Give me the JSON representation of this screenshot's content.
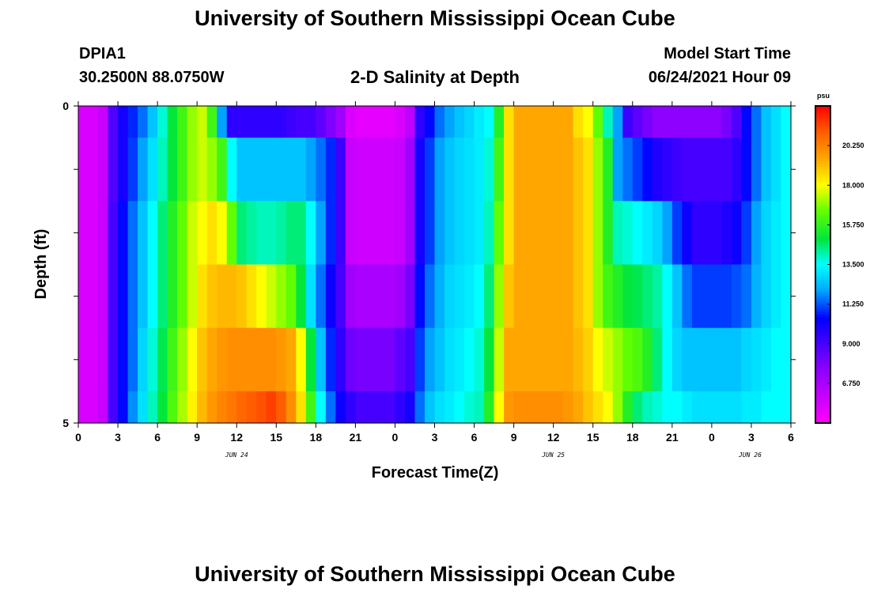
{
  "page": {
    "title_top": "University of Southern Mississippi Ocean Cube",
    "title_bottom": "University of Southern Mississippi Ocean Cube",
    "station_id": "DPIA1",
    "station_coords": "30.2500N  88.0750W",
    "plot_title": "2-D Salinity at Depth",
    "model_start_label": "Model Start Time",
    "model_start_value": "06/24/2021 Hour 09"
  },
  "chart_data": {
    "type": "heatmap",
    "title": "2-D Salinity at Depth",
    "xlabel": "Forecast Time(Z)",
    "ylabel": "Depth (ft)",
    "x_tick_labels": [
      "0",
      "3",
      "6",
      "9",
      "12",
      "15",
      "18",
      "21",
      "0",
      "3",
      "6",
      "9",
      "12",
      "15",
      "18",
      "21",
      "0",
      "3",
      "6"
    ],
    "x_date_labels": [
      "JUN 24",
      "JUN 25",
      "JUN 26"
    ],
    "y_tick_labels": [
      "0",
      "5"
    ],
    "y_range": [
      0,
      5
    ],
    "x_range_hours": [
      0,
      54
    ],
    "colorbar": {
      "unit": "psu",
      "range": [
        4.5,
        22.5
      ],
      "tick_values": [
        6.75,
        9.0,
        11.25,
        13.5,
        15.75,
        18.0,
        20.25
      ],
      "tick_labels": [
        "6.750",
        "9.000",
        "11.250",
        "13.500",
        "15.750",
        "18.000",
        "20.250"
      ]
    },
    "rows": [
      {
        "depth_from": 0,
        "depth_to": 0.5,
        "values": [
          5.5,
          5.5,
          6.0,
          8.8,
          10.0,
          10.8,
          11.5,
          12.5,
          13.8,
          15.0,
          16.0,
          17.0,
          17.5,
          16.0,
          12.0,
          9.5,
          9.5,
          9.5,
          9.5,
          9.5,
          9.5,
          9.2,
          9.0,
          9.0,
          8.5,
          7.8,
          7.0,
          5.5,
          5.2,
          5.2,
          5.2,
          5.2,
          5.5,
          6.2,
          9.5,
          10.5,
          11.5,
          12.0,
          12.5,
          12.8,
          13.2,
          13.5,
          15.5,
          18.5,
          19.5,
          19.5,
          19.5,
          19.5,
          19.5,
          19.5,
          18.5,
          18.0,
          16.5,
          14.0,
          12.0,
          9.2,
          8.5,
          8.0,
          7.5,
          7.5,
          7.5,
          7.5,
          7.5,
          7.5,
          7.5,
          8.0,
          8.8,
          10.5,
          11.5,
          12.5,
          13.0,
          13.5
        ]
      },
      {
        "depth_from": 0.5,
        "depth_to": 1.5,
        "values": [
          5.5,
          5.5,
          6.0,
          8.8,
          10.0,
          11.0,
          12.0,
          13.0,
          14.0,
          15.0,
          16.0,
          17.0,
          17.5,
          17.0,
          16.0,
          13.5,
          12.5,
          12.5,
          12.5,
          12.5,
          12.5,
          12.5,
          12.5,
          12.0,
          11.5,
          10.8,
          9.2,
          6.0,
          5.8,
          5.8,
          5.8,
          5.8,
          6.0,
          7.0,
          10.0,
          11.0,
          12.0,
          12.5,
          12.8,
          13.0,
          13.2,
          13.8,
          16.0,
          18.5,
          19.5,
          19.5,
          19.5,
          19.5,
          19.5,
          19.5,
          19.0,
          18.5,
          17.0,
          15.5,
          12.0,
          11.5,
          11.0,
          10.5,
          9.8,
          9.5,
          9.2,
          9.0,
          9.0,
          9.0,
          9.0,
          9.0,
          9.5,
          10.5,
          11.5,
          12.5,
          13.0,
          13.5
        ]
      },
      {
        "depth_from": 1.5,
        "depth_to": 2.5,
        "values": [
          5.5,
          5.5,
          6.0,
          9.0,
          10.5,
          11.5,
          12.5,
          13.5,
          14.5,
          15.5,
          16.5,
          17.5,
          18.0,
          18.5,
          18.0,
          16.5,
          14.5,
          14.2,
          14.0,
          14.0,
          14.2,
          14.5,
          14.5,
          13.5,
          12.0,
          10.8,
          9.2,
          6.0,
          5.8,
          5.8,
          5.8,
          5.8,
          6.0,
          7.0,
          10.0,
          11.0,
          12.0,
          12.5,
          12.8,
          13.0,
          13.2,
          14.0,
          16.5,
          18.5,
          19.5,
          19.5,
          19.5,
          19.5,
          19.5,
          19.5,
          19.0,
          18.5,
          17.0,
          15.5,
          14.0,
          13.8,
          13.5,
          13.2,
          12.8,
          12.0,
          11.0,
          10.2,
          9.5,
          9.5,
          9.5,
          9.8,
          10.2,
          11.0,
          12.0,
          12.8,
          13.2,
          13.5
        ]
      },
      {
        "depth_from": 2.5,
        "depth_to": 3.5,
        "values": [
          5.5,
          5.5,
          6.0,
          9.0,
          10.5,
          11.5,
          12.5,
          13.5,
          14.5,
          15.5,
          16.5,
          17.5,
          18.5,
          19.0,
          19.2,
          19.2,
          19.0,
          18.5,
          18.0,
          17.5,
          17.0,
          16.5,
          15.0,
          13.0,
          11.5,
          10.2,
          9.0,
          7.0,
          6.8,
          6.8,
          6.8,
          6.8,
          7.0,
          8.0,
          10.5,
          11.5,
          12.2,
          12.8,
          13.0,
          13.2,
          13.5,
          14.5,
          17.0,
          19.0,
          19.5,
          19.5,
          19.5,
          19.5,
          19.5,
          19.5,
          19.0,
          18.5,
          17.0,
          16.0,
          15.5,
          15.0,
          14.8,
          14.5,
          14.2,
          13.5,
          12.5,
          11.5,
          11.0,
          11.0,
          11.0,
          11.0,
          11.2,
          11.5,
          12.2,
          12.8,
          13.2,
          13.5
        ]
      },
      {
        "depth_from": 3.5,
        "depth_to": 4.5,
        "values": [
          5.5,
          5.5,
          6.0,
          9.0,
          10.5,
          11.5,
          12.8,
          13.8,
          14.8,
          16.0,
          17.0,
          18.0,
          19.0,
          19.5,
          19.8,
          20.0,
          20.0,
          20.0,
          20.0,
          20.0,
          19.8,
          19.5,
          18.0,
          15.0,
          12.5,
          10.8,
          9.5,
          8.2,
          8.0,
          8.0,
          8.0,
          8.0,
          8.5,
          9.0,
          11.0,
          12.0,
          12.5,
          13.0,
          13.2,
          13.5,
          13.8,
          15.0,
          17.5,
          19.5,
          19.5,
          19.5,
          19.5,
          19.5,
          19.5,
          19.5,
          19.2,
          18.8,
          18.0,
          17.5,
          17.0,
          16.5,
          16.2,
          15.5,
          14.5,
          13.5,
          12.8,
          12.5,
          12.5,
          12.5,
          12.5,
          12.5,
          12.5,
          12.8,
          13.0,
          13.2,
          13.5,
          13.5
        ]
      },
      {
        "depth_from": 4.5,
        "depth_to": 5,
        "values": [
          5.5,
          5.5,
          6.0,
          9.0,
          10.5,
          11.8,
          13.0,
          14.0,
          15.0,
          16.2,
          17.2,
          18.2,
          19.2,
          19.8,
          20.2,
          20.5,
          20.8,
          21.0,
          21.2,
          21.5,
          21.0,
          20.0,
          18.5,
          16.0,
          13.5,
          11.5,
          10.2,
          9.5,
          9.0,
          9.0,
          9.0,
          9.0,
          9.5,
          10.0,
          11.5,
          12.5,
          13.0,
          13.2,
          13.5,
          13.8,
          14.0,
          15.5,
          18.0,
          19.8,
          20.0,
          20.0,
          20.0,
          20.0,
          20.0,
          19.8,
          19.5,
          19.0,
          18.5,
          18.0,
          17.0,
          15.5,
          14.5,
          14.0,
          13.8,
          13.5,
          13.5,
          13.2,
          13.0,
          13.0,
          13.0,
          13.0,
          13.0,
          13.2,
          13.2,
          13.5,
          13.5,
          13.5
        ]
      }
    ]
  }
}
